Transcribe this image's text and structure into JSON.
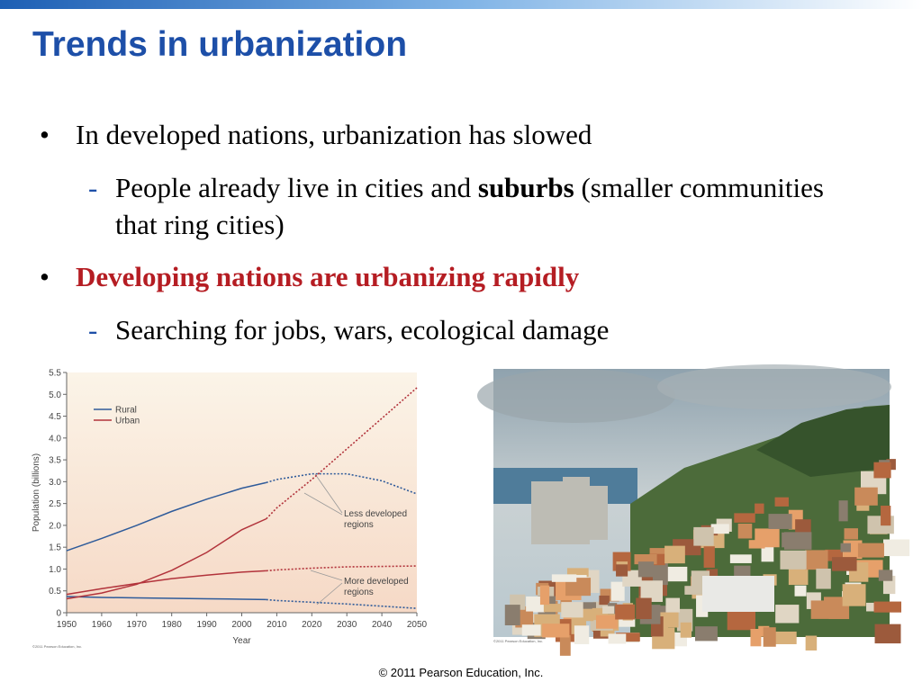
{
  "title": "Trends in urbanization",
  "bullets": [
    {
      "text": "In developed nations, urbanization has slowed",
      "sub": [
        [
          "People already live in cities and ",
          "suburbs",
          " (smaller communities that ring cities)"
        ]
      ]
    },
    {
      "text": "Developing nations are urbanizing rapidly",
      "sub": [
        [
          "Searching for jobs, wars, ecological damage"
        ]
      ]
    }
  ],
  "chart_data": {
    "type": "line",
    "xlabel": "Year",
    "ylabel": "Population (billions)",
    "x": [
      1950,
      1960,
      1970,
      1980,
      1990,
      2000,
      2007,
      2010,
      2020,
      2030,
      2040,
      2050
    ],
    "projection_from": 2007,
    "xlim": [
      1950,
      2050
    ],
    "xticks": [
      1950,
      1960,
      1970,
      1980,
      1990,
      2000,
      2010,
      2020,
      2030,
      2040,
      2050
    ],
    "ylim": [
      0,
      5.5
    ],
    "yticks": [
      0,
      0.5,
      {
        "value": 1,
        "label": "1.0"
      },
      1.5,
      {
        "value": 2,
        "label": "2.0"
      },
      2.5,
      {
        "value": 3,
        "label": "3.0"
      },
      3.5,
      {
        "value": 4,
        "label": "4.0"
      },
      4.5,
      {
        "value": 5,
        "label": "5.0"
      },
      5.5
    ],
    "series": [
      {
        "name": "Rural",
        "color": "#2f5b9a",
        "lines": [
          [
            1.42,
            1.7,
            2.0,
            2.32,
            2.6,
            2.85,
            2.98,
            3.05,
            3.18,
            3.18,
            3.02,
            2.72
          ],
          [
            0.37,
            0.35,
            0.34,
            0.33,
            0.32,
            0.31,
            0.3,
            0.28,
            0.24,
            0.2,
            0.15,
            0.1
          ]
        ]
      },
      {
        "name": "Urban",
        "color": "#b2333b",
        "lines": [
          [
            0.32,
            0.45,
            0.65,
            0.97,
            1.38,
            1.9,
            2.15,
            2.4,
            3.05,
            3.75,
            4.45,
            5.15
          ],
          [
            0.42,
            0.55,
            0.67,
            0.78,
            0.86,
            0.93,
            0.96,
            0.98,
            1.02,
            1.05,
            1.06,
            1.07
          ]
        ]
      }
    ],
    "annotations": [
      "Less developed regions",
      "More developed regions"
    ],
    "credit": "©2011 Pearson Education, Inc."
  },
  "photo_credit": "©2011 Pearson Education, Inc.",
  "footer": "© 2011 Pearson Education, Inc."
}
